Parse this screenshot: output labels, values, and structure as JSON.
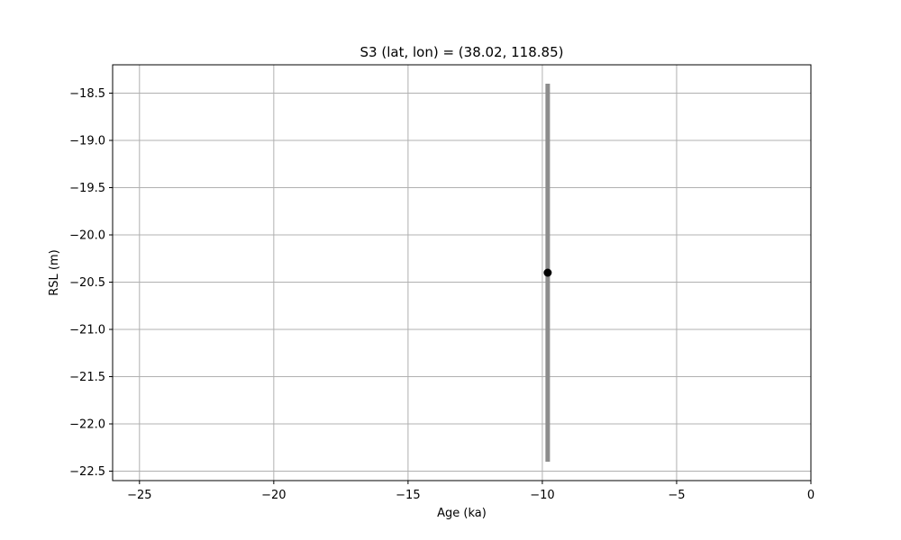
{
  "chart_data": {
    "type": "scatter",
    "title": "S3 (lat, lon) = (38.02, 118.85)",
    "xlabel": "Age (ka)",
    "ylabel": "RSL (m)",
    "xlim": [
      -26.0,
      0.0
    ],
    "ylim": [
      -22.6,
      -18.2
    ],
    "x_ticks": [
      -25,
      -20,
      -15,
      -10,
      -5,
      0
    ],
    "x_tick_labels": [
      "−25",
      "−20",
      "−15",
      "−10",
      "−5",
      "0"
    ],
    "y_ticks": [
      -18.5,
      -19.0,
      -19.5,
      -20.0,
      -20.5,
      -21.0,
      -21.5,
      -22.0,
      -22.5
    ],
    "y_tick_labels": [
      "−18.5",
      "−19.0",
      "−19.5",
      "−20.0",
      "−20.5",
      "−21.0",
      "−21.5",
      "−22.0",
      "−22.5"
    ],
    "grid": true,
    "points": [
      {
        "x": -9.8,
        "y": -20.4,
        "y_err_low": -22.4,
        "y_err_high": -18.4
      }
    ],
    "colors": {
      "point": "#000000",
      "error_bar": "#8c8c8c",
      "grid": "#b0b0b0",
      "axes": "#000000"
    }
  }
}
